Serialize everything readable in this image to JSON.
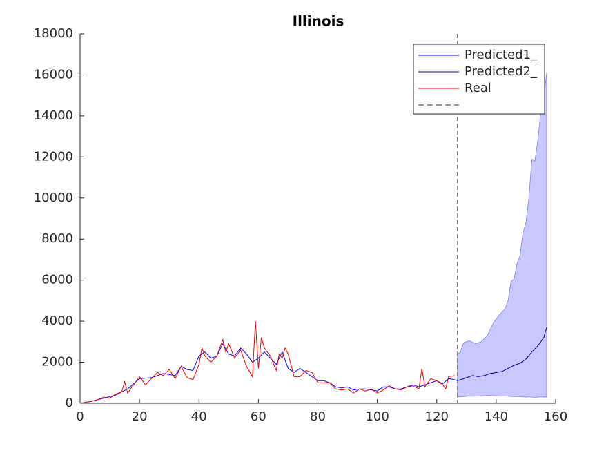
{
  "chart_data": {
    "type": "line",
    "title": "Illinois",
    "xlim": [
      0,
      160
    ],
    "ylim": [
      0,
      18000
    ],
    "xticks": [
      0,
      20,
      40,
      60,
      80,
      100,
      120,
      140,
      160
    ],
    "yticks": [
      0,
      2000,
      4000,
      6000,
      8000,
      10000,
      12000,
      14000,
      16000,
      18000
    ],
    "grid": false,
    "legend_position": "northeast",
    "series": [
      {
        "name": "Predicted1_",
        "color": "#0000ff",
        "x": [
          0,
          4,
          8,
          12,
          16,
          20,
          24,
          28,
          32,
          34,
          36,
          38,
          40,
          42,
          44,
          46,
          48,
          50,
          52,
          54,
          56,
          58,
          60,
          62,
          64,
          66,
          68,
          70,
          72,
          74,
          76,
          78,
          80,
          82,
          84,
          86,
          88,
          90,
          92,
          94,
          96,
          98,
          100,
          102,
          104,
          106,
          108,
          110,
          112,
          114,
          116,
          118,
          120,
          122,
          124,
          126,
          127
        ],
        "values": [
          0,
          100,
          250,
          400,
          700,
          1200,
          1250,
          1450,
          1350,
          1800,
          1650,
          1600,
          2300,
          2500,
          2200,
          2300,
          2900,
          2400,
          2300,
          2700,
          2400,
          2000,
          2200,
          2500,
          2200,
          1900,
          2500,
          1700,
          1500,
          1700,
          1500,
          1300,
          1100,
          1100,
          1000,
          800,
          750,
          800,
          650,
          700,
          700,
          650,
          600,
          800,
          800,
          700,
          700,
          800,
          900,
          800,
          900,
          1000,
          1100,
          950,
          1200,
          1150,
          1100
        ]
      },
      {
        "name": "Predicted2_",
        "color": "#00008b",
        "x": [
          127,
          130,
          132,
          134,
          136,
          138,
          140,
          142,
          144,
          146,
          148,
          150,
          152,
          154,
          156,
          157
        ],
        "values": [
          1100,
          1250,
          1350,
          1300,
          1350,
          1450,
          1500,
          1550,
          1700,
          1850,
          1950,
          2150,
          2500,
          2800,
          3200,
          3700
        ]
      },
      {
        "name": "Real",
        "color": "#e60000",
        "x": [
          0,
          2,
          4,
          6,
          8,
          10,
          12,
          14,
          15,
          16,
          18,
          20,
          22,
          24,
          26,
          28,
          30,
          32,
          34,
          36,
          38,
          40,
          41,
          42,
          44,
          46,
          48,
          49,
          50,
          52,
          54,
          56,
          58,
          59,
          60,
          61,
          62,
          64,
          66,
          67,
          68,
          69,
          70,
          72,
          74,
          76,
          78,
          80,
          82,
          84,
          86,
          88,
          90,
          92,
          94,
          96,
          98,
          100,
          102,
          104,
          106,
          108,
          110,
          112,
          114,
          115,
          116,
          118,
          120,
          122,
          123,
          124,
          126
        ],
        "values": [
          0,
          50,
          100,
          180,
          300,
          250,
          450,
          550,
          1050,
          500,
          900,
          1300,
          900,
          1200,
          1500,
          1350,
          1650,
          1200,
          1800,
          1250,
          1150,
          1900,
          2700,
          2300,
          2000,
          2300,
          3100,
          2500,
          2900,
          2200,
          2600,
          1800,
          1300,
          4000,
          1700,
          3200,
          2700,
          2300,
          1600,
          2400,
          2200,
          2700,
          2400,
          1300,
          1300,
          1600,
          1500,
          1000,
          1000,
          1000,
          700,
          650,
          700,
          500,
          700,
          600,
          700,
          500,
          650,
          850,
          700,
          650,
          800,
          850,
          700,
          1700,
          800,
          1200,
          1100,
          900,
          700,
          1300,
          1350
        ]
      }
    ],
    "band": {
      "color": "#c8c8ff",
      "edge_color": "#8080e0",
      "x": [
        127,
        128,
        129,
        131,
        133,
        135,
        137,
        139,
        141,
        143,
        144,
        145,
        146,
        147,
        148,
        149,
        150,
        151,
        152,
        153,
        154,
        155,
        156,
        157
      ],
      "upper": [
        2400,
        2500,
        2950,
        3050,
        2900,
        3000,
        3300,
        3900,
        4300,
        4600,
        5000,
        5950,
        6050,
        6800,
        7200,
        8300,
        8800,
        10000,
        11900,
        11800,
        12800,
        14200,
        15000,
        16100
      ],
      "lower": [
        300,
        320,
        330,
        350,
        340,
        360,
        380,
        370,
        360,
        350,
        340,
        330,
        330,
        320,
        330,
        310,
        300,
        310,
        300,
        290,
        300,
        310,
        300,
        300
      ]
    },
    "vline": {
      "x": 127,
      "color": "#262626"
    }
  }
}
